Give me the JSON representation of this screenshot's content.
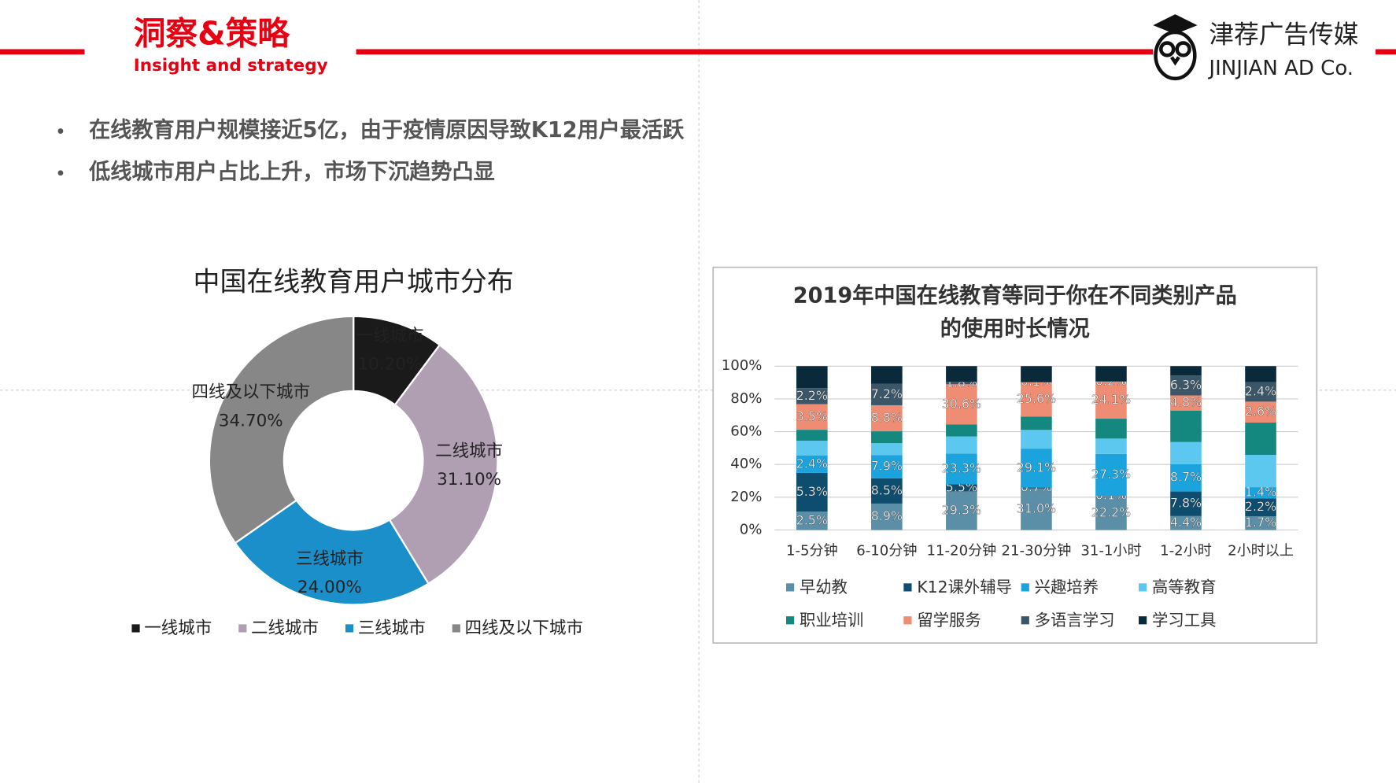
{
  "header": {
    "title": "洞察&策略",
    "subtitle": "Insight and strategy"
  },
  "logo": {
    "name": "津荐广告传媒",
    "en": "JINJIAN AD Co."
  },
  "bullets": [
    "在线教育用户规模接近5亿，由于疫情原因导致K12用户最活跃",
    "低线城市用户占比上升，市场下沉趋势凸显"
  ],
  "chart_data": [
    {
      "type": "donut",
      "title": "中国在线教育用户城市分布",
      "categories": [
        "一线城市",
        "二线城市",
        "三线城市",
        "四线及以下城市"
      ],
      "values": [
        10.2,
        31.1,
        24.0,
        34.7
      ],
      "value_labels": [
        "10.20%",
        "31.10%",
        "24.00%",
        "34.70%"
      ],
      "colors": [
        "#1a1a1a",
        "#b09fb3",
        "#1b8fc9",
        "#878787"
      ],
      "legend": "bottom"
    },
    {
      "type": "stacked_percent_bar",
      "title": [
        "2019年中国在线教育等同于你在不同类别产品",
        "的使用时长情况"
      ],
      "categories": [
        "1-5分钟",
        "6-10分钟",
        "11-20分钟",
        "21-30分钟",
        "31-1小时",
        "1-2小时",
        "2小时以上"
      ],
      "ylim": [
        0,
        100
      ],
      "yticks": [
        {
          "value": 0,
          "label": "0%"
        },
        {
          "value": 20,
          "label": "20%"
        },
        {
          "value": 40,
          "label": "40%"
        },
        {
          "value": 60,
          "label": "60%"
        },
        {
          "value": 80,
          "label": "80%"
        },
        {
          "value": 100,
          "label": "100%"
        }
      ],
      "grid": true,
      "legend": "bottom",
      "series": [
        {
          "name": "早幼教",
          "color": "#5b8fa8",
          "values": [
            2.5,
            8.9,
            29.3,
            31.0,
            22.2,
            4.4,
            1.7
          ],
          "value_labels": [
            "2.5%",
            "8.9%",
            "29.3%",
            "31.0%",
            "22.2%",
            "4.4%",
            "1.7%"
          ]
        },
        {
          "name": "K12课外辅导",
          "color": "#0e4d6e",
          "values": [
            5.3,
            8.5,
            5.5,
            0.7,
            0.1,
            7.8,
            2.2
          ],
          "value_labels": [
            "5.3%",
            "8.5%",
            "5.5%",
            "0.7%",
            "0.1%",
            "7.8%",
            "2.2%"
          ]
        },
        {
          "name": "兴趣培养",
          "color": "#1aa3dc",
          "values": [
            2.4,
            7.9,
            23.3,
            29.1,
            27.3,
            8.7,
            1.4
          ],
          "value_labels": [
            "2.4%",
            "7.9%",
            "23.3%",
            "29.1%",
            "27.3%",
            "8.7%",
            "1.4%"
          ]
        },
        {
          "name": "高等教育",
          "color": "#5cc8f0",
          "values": [
            2,
            4,
            13,
            14,
            10,
            7,
            4
          ],
          "value_labels": [
            null,
            null,
            null,
            null,
            null,
            null,
            null
          ]
        },
        {
          "name": "职业培训",
          "color": "#14877e",
          "values": [
            1.5,
            4,
            9,
            10,
            13,
            10,
            4
          ],
          "value_labels": [
            null,
            null,
            null,
            null,
            null,
            null,
            null
          ]
        },
        {
          "name": "留学服务",
          "color": "#ee8c74",
          "values": [
            3.5,
            8.8,
            30.6,
            25.6,
            24.1,
            4.8,
            2.6
          ],
          "value_labels": [
            "3.5%",
            "8.8%",
            "30.6%",
            "25.6%",
            "24.1%",
            "4.8%",
            "2.6%"
          ]
        },
        {
          "name": "多语言学习",
          "color": "#3b5668",
          "values": [
            2.2,
            7.2,
            1.8,
            0.1,
            0.2,
            6.3,
            2.4
          ],
          "value_labels": [
            "2.2%",
            "7.2%",
            "1.8%",
            "0.1%",
            "0.2%",
            "6.3%",
            "2.4%"
          ]
        },
        {
          "name": "学习工具",
          "color": "#0a2a3c",
          "values": [
            3,
            6,
            12,
            12,
            10,
            3,
            2
          ],
          "value_labels": [
            null,
            null,
            null,
            null,
            null,
            null,
            null
          ]
        }
      ]
    }
  ]
}
